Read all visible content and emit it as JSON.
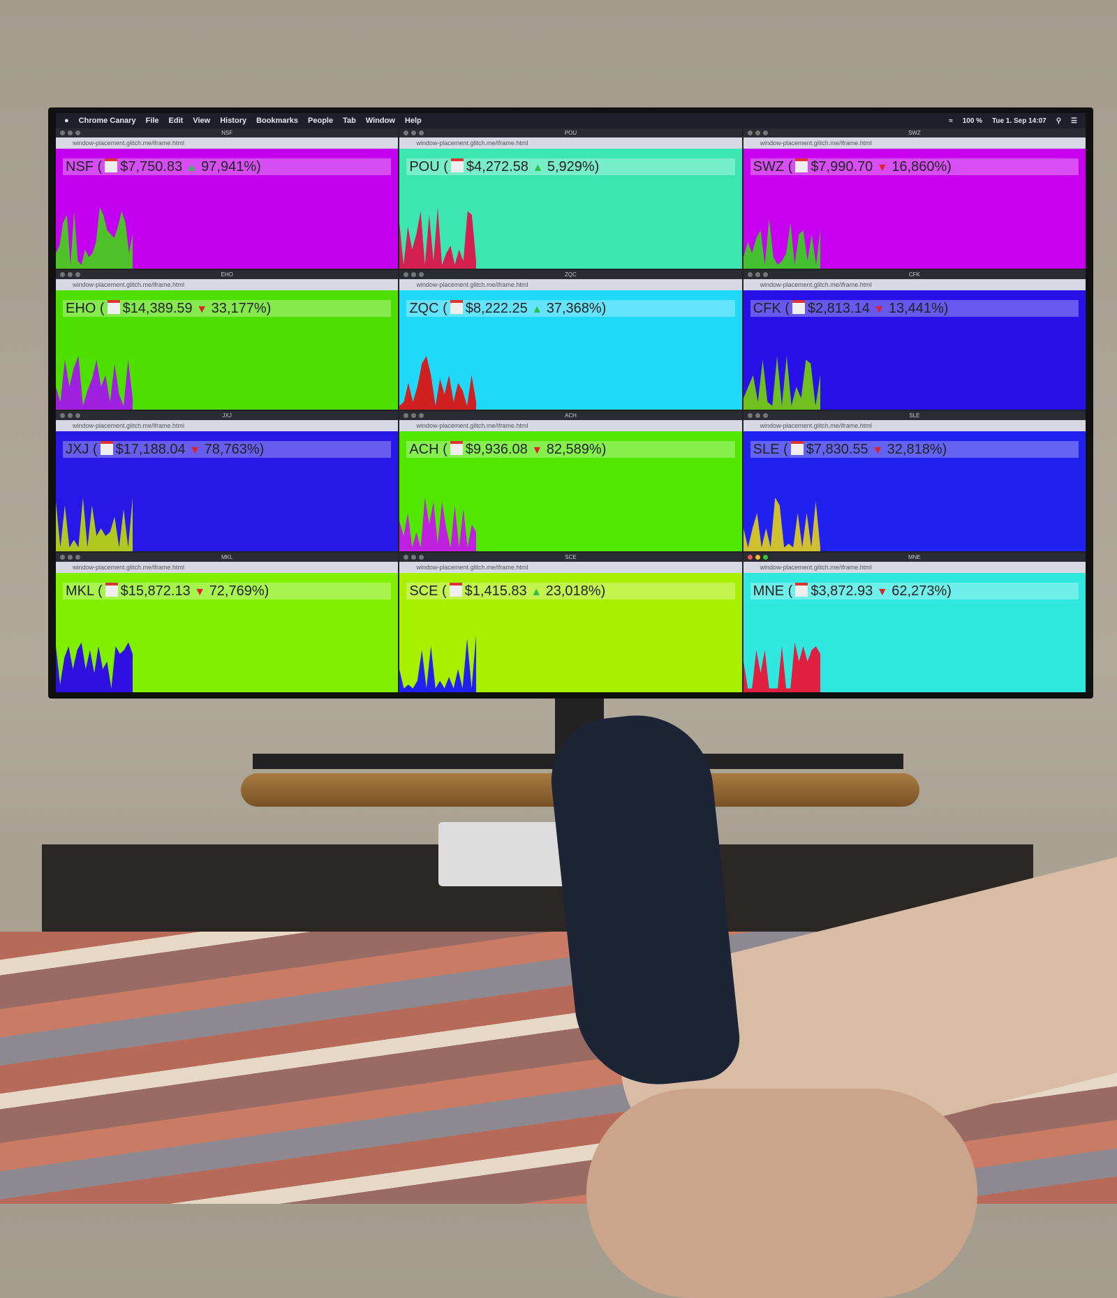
{
  "menubar": {
    "items": [
      "Chrome Canary",
      "File",
      "Edit",
      "View",
      "History",
      "Bookmarks",
      "People",
      "Tab",
      "Window",
      "Help"
    ],
    "battery": "100 %",
    "clock": "Tue 1. Sep 14:07"
  },
  "url": "window-placement.glitch.me/iframe.html",
  "colors": {
    "up": "#2ec04a",
    "down": "#e0202a"
  },
  "windows": [
    {
      "ticker": "NSF",
      "price": "$7,750.83",
      "dir": "up",
      "pct": "97,941%)",
      "bg": "#c400f0",
      "fg": "#4fc22a",
      "values": [
        20,
        30,
        60,
        70,
        5,
        75,
        10,
        5,
        25,
        15,
        20,
        35,
        80,
        70,
        50,
        45,
        40,
        55,
        75,
        60,
        20,
        45
      ]
    },
    {
      "ticker": "POU",
      "price": "$4,272.58",
      "dir": "up",
      "pct": "5,929%)",
      "bg": "#3de6b0",
      "fg": "#d42050",
      "values": [
        60,
        5,
        55,
        25,
        45,
        75,
        5,
        70,
        10,
        80,
        5,
        20,
        30,
        5,
        25,
        10,
        75,
        70,
        10
      ]
    },
    {
      "ticker": "SWZ",
      "price": "$7,990.70",
      "dir": "down",
      "pct": "16,860%)",
      "bg": "#c800f0",
      "fg": "#44c030",
      "values": [
        15,
        35,
        20,
        40,
        50,
        5,
        65,
        15,
        5,
        10,
        20,
        60,
        5,
        45,
        50,
        10,
        45,
        5,
        50
      ]
    },
    {
      "ticker": "EHO",
      "price": "$14,389.59",
      "dir": "down",
      "pct": "33,177%)",
      "bg": "#4ee000",
      "fg": "#a020e0",
      "values": [
        30,
        10,
        65,
        30,
        55,
        70,
        5,
        25,
        40,
        65,
        30,
        45,
        10,
        60,
        20,
        5,
        65,
        15
      ]
    },
    {
      "ticker": "ZQC",
      "price": "$8,222.25",
      "dir": "up",
      "pct": "37,368%)",
      "bg": "#20d8f8",
      "fg": "#d02020",
      "values": [
        5,
        10,
        35,
        10,
        30,
        60,
        70,
        45,
        5,
        40,
        20,
        45,
        10,
        35,
        25,
        5,
        45,
        10
      ]
    },
    {
      "ticker": "CFK",
      "price": "$2,813.14",
      "dir": "down",
      "pct": "13,441%)",
      "bg": "#2810e8",
      "fg": "#70c020",
      "values": [
        15,
        30,
        45,
        10,
        65,
        10,
        5,
        70,
        5,
        70,
        5,
        30,
        15,
        65,
        60,
        5,
        45
      ]
    },
    {
      "ticker": "JXJ",
      "price": "$17,188.04",
      "dir": "down",
      "pct": "78,763%)",
      "bg": "#2818e8",
      "fg": "#b0c820",
      "values": [
        65,
        5,
        60,
        5,
        15,
        5,
        70,
        5,
        60,
        20,
        30,
        20,
        25,
        45,
        5,
        55,
        5,
        70
      ]
    },
    {
      "ticker": "ACH",
      "price": "$9,936.08",
      "dir": "down",
      "pct": "82,589%)",
      "bg": "#50e800",
      "fg": "#c020e0",
      "values": [
        40,
        20,
        50,
        5,
        25,
        5,
        70,
        35,
        65,
        10,
        65,
        30,
        5,
        60,
        5,
        55,
        5,
        35,
        25
      ]
    },
    {
      "ticker": "SLE",
      "price": "$7,830.55",
      "dir": "down",
      "pct": "32,818%)",
      "bg": "#2020f0",
      "fg": "#d0c030",
      "values": [
        30,
        5,
        30,
        50,
        5,
        30,
        5,
        70,
        60,
        5,
        10,
        5,
        50,
        5,
        50,
        5,
        65,
        5
      ]
    },
    {
      "ticker": "MKL",
      "price": "$15,872.13",
      "dir": "down",
      "pct": "72,769%)",
      "bg": "#80f000",
      "fg": "#3010e0",
      "values": [
        60,
        10,
        45,
        60,
        30,
        55,
        65,
        30,
        55,
        25,
        60,
        30,
        40,
        5,
        60,
        50,
        55,
        65,
        50
      ]
    },
    {
      "ticker": "SCE",
      "price": "$1,415.83",
      "dir": "up",
      "pct": "23,018%)",
      "bg": "#a8f000",
      "fg": "#2020f0",
      "values": [
        30,
        5,
        10,
        5,
        15,
        55,
        5,
        60,
        5,
        15,
        5,
        20,
        5,
        30,
        5,
        70,
        5,
        75
      ]
    },
    {
      "ticker": "MNE",
      "price": "$3,872.93",
      "dir": "down",
      "pct": "62,273%)",
      "bg": "#30e8e0",
      "fg": "#e02040",
      "values": [
        40,
        5,
        5,
        55,
        25,
        55,
        5,
        5,
        5,
        60,
        5,
        5,
        65,
        40,
        60,
        40,
        55,
        60,
        50
      ]
    }
  ]
}
